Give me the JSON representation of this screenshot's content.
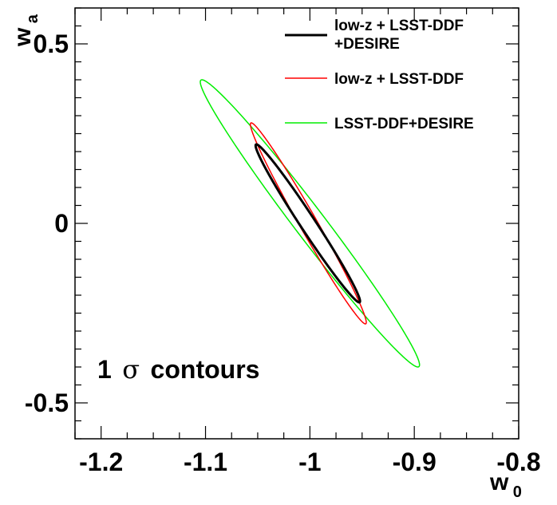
{
  "chart_data": {
    "type": "contour",
    "xlabel": "w",
    "xlabel_subscript": "0",
    "ylabel": "w",
    "ylabel_subscript": "a",
    "xlim": [
      -1.225,
      -0.8
    ],
    "ylim": [
      -0.6,
      0.6
    ],
    "x_ticks": [
      {
        "value": -1.2,
        "label": "-1.2"
      },
      {
        "value": -1.1,
        "label": "-1.1"
      },
      {
        "value": -1.0,
        "label": "-1"
      },
      {
        "value": -0.9,
        "label": "-0.9"
      },
      {
        "value": -0.8,
        "label": "-0.8"
      }
    ],
    "y_ticks": [
      {
        "value": -0.5,
        "label": "-0.5"
      },
      {
        "value": 0.0,
        "label": "0"
      },
      {
        "value": 0.5,
        "label": "0.5"
      }
    ],
    "x_minor_step": 0.025,
    "y_minor_step": 0.05,
    "grid": false,
    "legend_position": "top-right",
    "annotation": {
      "number": "1",
      "symbol": "σ",
      "text": "contours"
    },
    "series": [
      {
        "name_lines": [
          "low-z + LSST-DDF",
          "+DESIRE"
        ],
        "color": "#000000",
        "line_width": 3,
        "extrema": {
          "x_min": -1.052,
          "x_max": -0.952,
          "y_min": -0.22,
          "y_max": 0.22
        }
      },
      {
        "name_lines": [
          "low-z + LSST-DDF"
        ],
        "color": "#ff0000",
        "line_width": 1.5,
        "extrema": {
          "x_min": -1.057,
          "x_max": -0.946,
          "y_min": -0.28,
          "y_max": 0.28
        }
      },
      {
        "name_lines": [
          "LSST-DDF+DESIRE"
        ],
        "color": "#00ee00",
        "line_width": 1.5,
        "extrema": {
          "x_min": -1.105,
          "x_max": -0.895,
          "y_min": -0.4,
          "y_max": 0.4
        }
      }
    ]
  }
}
